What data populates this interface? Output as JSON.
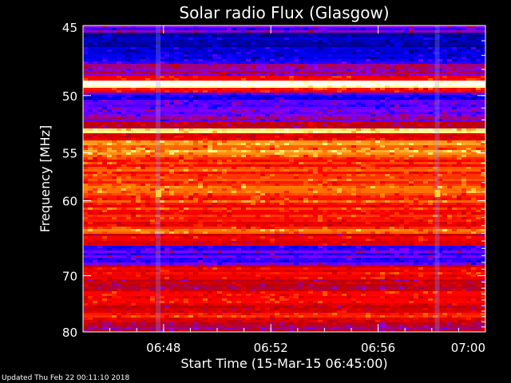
{
  "footer": "Updated Thu Feb 22 00:11:10 2018",
  "chart_data": {
    "type": "heatmap",
    "title": "Solar radio Flux (Glasgow)",
    "xlabel": "Start Time (15-Mar-15 06:45:00)",
    "ylabel": "Frequency [MHz]",
    "x_ticks": [
      "06:48",
      "06:52",
      "06:56",
      "07:00"
    ],
    "y_ticks": [
      "45",
      "50",
      "55",
      "60",
      "70",
      "80"
    ],
    "x_range_minutes": [
      0,
      15
    ],
    "y_range_mhz": [
      45,
      80
    ],
    "y_scale": "reciprocal",
    "colormap": [
      "#000080",
      "#0000ff",
      "#8000ff",
      "#c00000",
      "#ff0000",
      "#ff8000",
      "#ffff80",
      "#ffffff"
    ],
    "bands": [
      {
        "f0": 45.0,
        "f1": 45.4,
        "level": 0.28
      },
      {
        "f0": 45.4,
        "f1": 46.5,
        "level": 0.08
      },
      {
        "f0": 46.5,
        "f1": 47.6,
        "level": 0.14
      },
      {
        "f0": 47.6,
        "f1": 48.4,
        "level": 0.33
      },
      {
        "f0": 48.4,
        "f1": 48.9,
        "level": 0.55
      },
      {
        "f0": 48.9,
        "f1": 49.3,
        "level": 0.96
      },
      {
        "f0": 49.3,
        "f1": 49.7,
        "level": 0.6
      },
      {
        "f0": 49.7,
        "f1": 51.2,
        "level": 0.2
      },
      {
        "f0": 51.2,
        "f1": 52.2,
        "level": 0.3
      },
      {
        "f0": 52.2,
        "f1": 52.8,
        "level": 0.42
      },
      {
        "f0": 52.8,
        "f1": 53.1,
        "level": 0.9
      },
      {
        "f0": 53.1,
        "f1": 53.8,
        "level": 0.56
      },
      {
        "f0": 53.8,
        "f1": 55.2,
        "level": 0.74
      },
      {
        "f0": 55.2,
        "f1": 57.5,
        "level": 0.63
      },
      {
        "f0": 57.5,
        "f1": 60.5,
        "level": 0.66
      },
      {
        "f0": 60.5,
        "f1": 63.5,
        "level": 0.58
      },
      {
        "f0": 63.5,
        "f1": 64.2,
        "level": 0.72
      },
      {
        "f0": 64.2,
        "f1": 65.5,
        "level": 0.5
      },
      {
        "f0": 65.5,
        "f1": 68.5,
        "level": 0.22
      },
      {
        "f0": 68.5,
        "f1": 70.5,
        "level": 0.52
      },
      {
        "f0": 70.5,
        "f1": 72.5,
        "level": 0.4
      },
      {
        "f0": 72.5,
        "f1": 74.5,
        "level": 0.56
      },
      {
        "f0": 74.5,
        "f1": 76.0,
        "level": 0.48
      },
      {
        "f0": 76.0,
        "f1": 78.0,
        "level": 0.55
      },
      {
        "f0": 78.0,
        "f1": 80.0,
        "level": 0.42
      }
    ]
  }
}
